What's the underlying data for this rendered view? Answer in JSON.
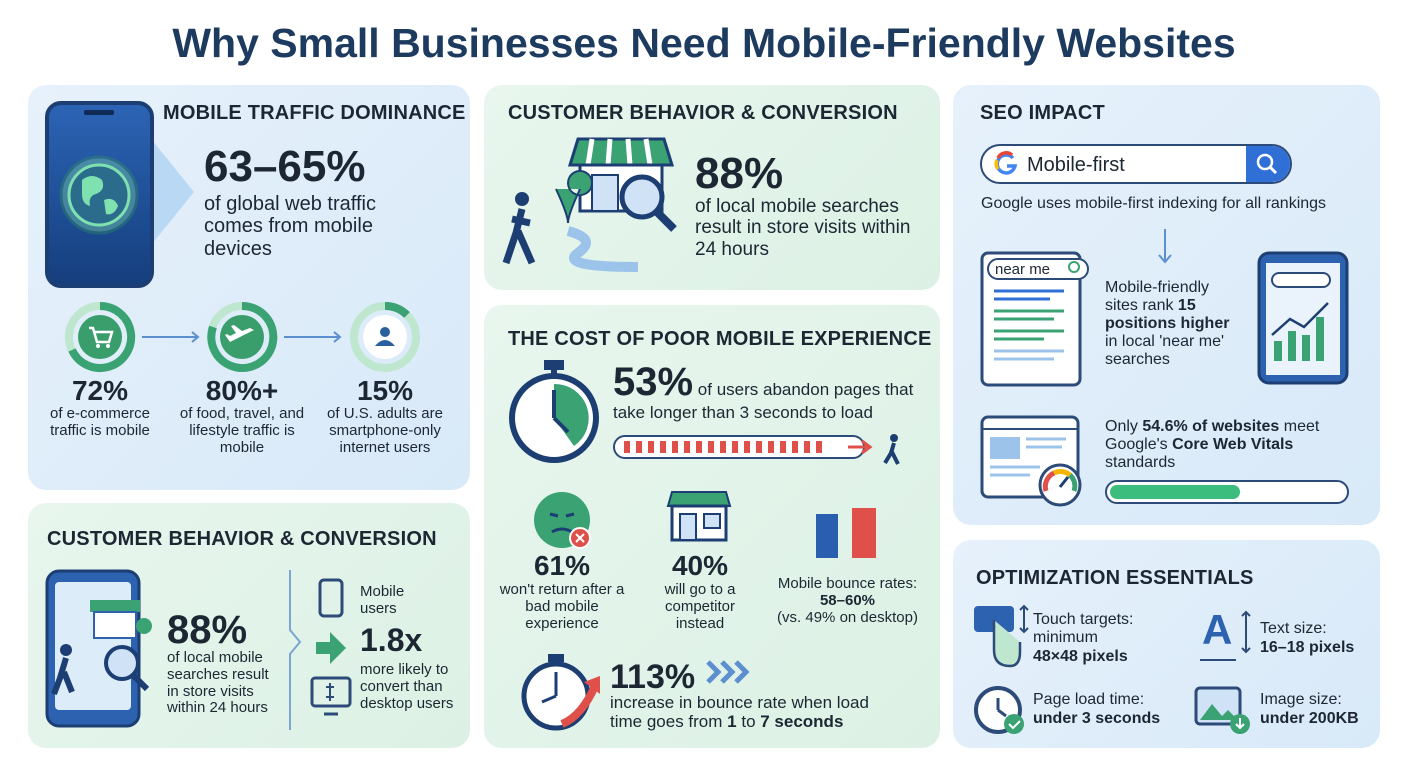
{
  "title": "Why Small Businesses Need Mobile-Friendly Websites",
  "traffic": {
    "heading": "MOBILE TRAFFIC DOMINANCE",
    "stat": "63–65%",
    "text": "of global web traffic comes from mobile devices",
    "items": [
      {
        "stat": "72%",
        "text": "of e-commerce traffic is mobile"
      },
      {
        "stat": "80%+",
        "text": "of food, travel, and lifestyle traffic is mobile"
      },
      {
        "stat": "15%",
        "text": "of U.S. adults are smartphone-only internet users"
      }
    ]
  },
  "behavior": {
    "heading": "CUSTOMER BEHAVIOR & CONVERSION",
    "stat": "88%",
    "text": "of local mobile searches result in store visits within 24 hours"
  },
  "behavior_lower": {
    "heading": "CUSTOMER BEHAVIOR & CONVERSION",
    "stat": "88%",
    "text": "of local mobile searches result in store visits within 24 hours",
    "convert_label": "Mobile users",
    "convert_stat": "1.8x",
    "convert_text": "more likely to convert than desktop users"
  },
  "cost": {
    "heading": "THE COST OF POOR MOBILE EXPERIENCE",
    "abandon": {
      "stat": "53%",
      "text": "of users abandon pages that take longer than 3 seconds to load"
    },
    "items": [
      {
        "stat": "61%",
        "text": "won't return after a bad mobile experience"
      },
      {
        "stat": "40%",
        "text": "will go to a competitor instead"
      },
      {
        "label": "Mobile bounce rates:",
        "stat": "58–60%",
        "note": "(vs. 49% on desktop)"
      }
    ],
    "bounce": {
      "stat": "113%",
      "text": [
        "increase in bounce rate when load time goes from ",
        "1",
        " to ",
        "7 seconds"
      ]
    }
  },
  "seo": {
    "heading": "SEO IMPACT",
    "search": "Mobile-first",
    "caption": "Google uses mobile-first indexing for all rankings",
    "near_me": "near me",
    "rank_text": [
      "Mobile-friendly sites rank ",
      "15 positions higher",
      " in local 'near me' searches"
    ],
    "vitals_text": [
      "Only ",
      "54.6% of websites",
      " meet Google's ",
      "Core Web Vitals",
      " standards"
    ]
  },
  "optimization": {
    "heading": "OPTIMIZATION ESSENTIALS",
    "items": [
      {
        "label": "Touch targets: minimum",
        "value": "48×48 pixels"
      },
      {
        "label": "Text size:",
        "value": "16–18 pixels"
      },
      {
        "label": "Page load time:",
        "value": "under 3 seconds"
      },
      {
        "label": "Image size:",
        "value": "under 200KB"
      }
    ]
  }
}
